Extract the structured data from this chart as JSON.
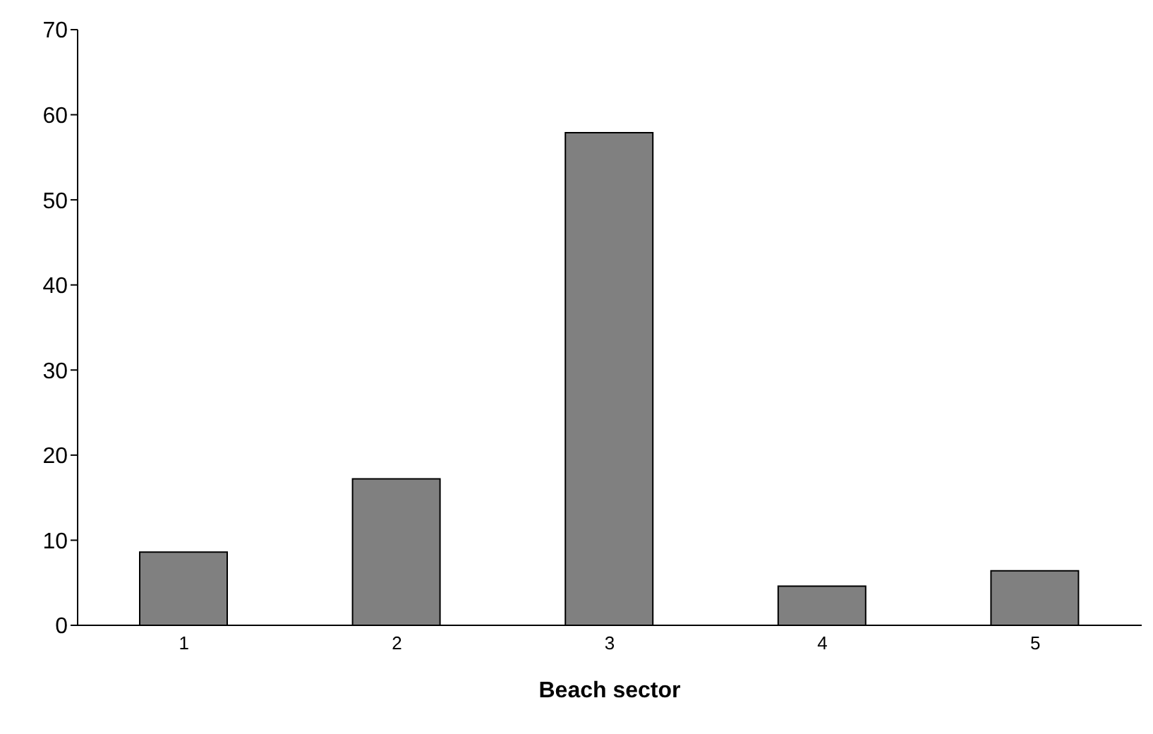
{
  "chart_data": {
    "type": "bar",
    "xlabel": "Beach sector",
    "categories": [
      "1",
      "2",
      "3",
      "4",
      "5"
    ],
    "values": [
      8.6,
      17.2,
      57.9,
      4.6,
      6.4
    ],
    "color": "#808080",
    "ylim": [
      0,
      70
    ],
    "yticks": [
      0,
      10,
      20,
      30,
      40,
      50,
      60,
      70
    ],
    "grid": false,
    "legend": false
  }
}
